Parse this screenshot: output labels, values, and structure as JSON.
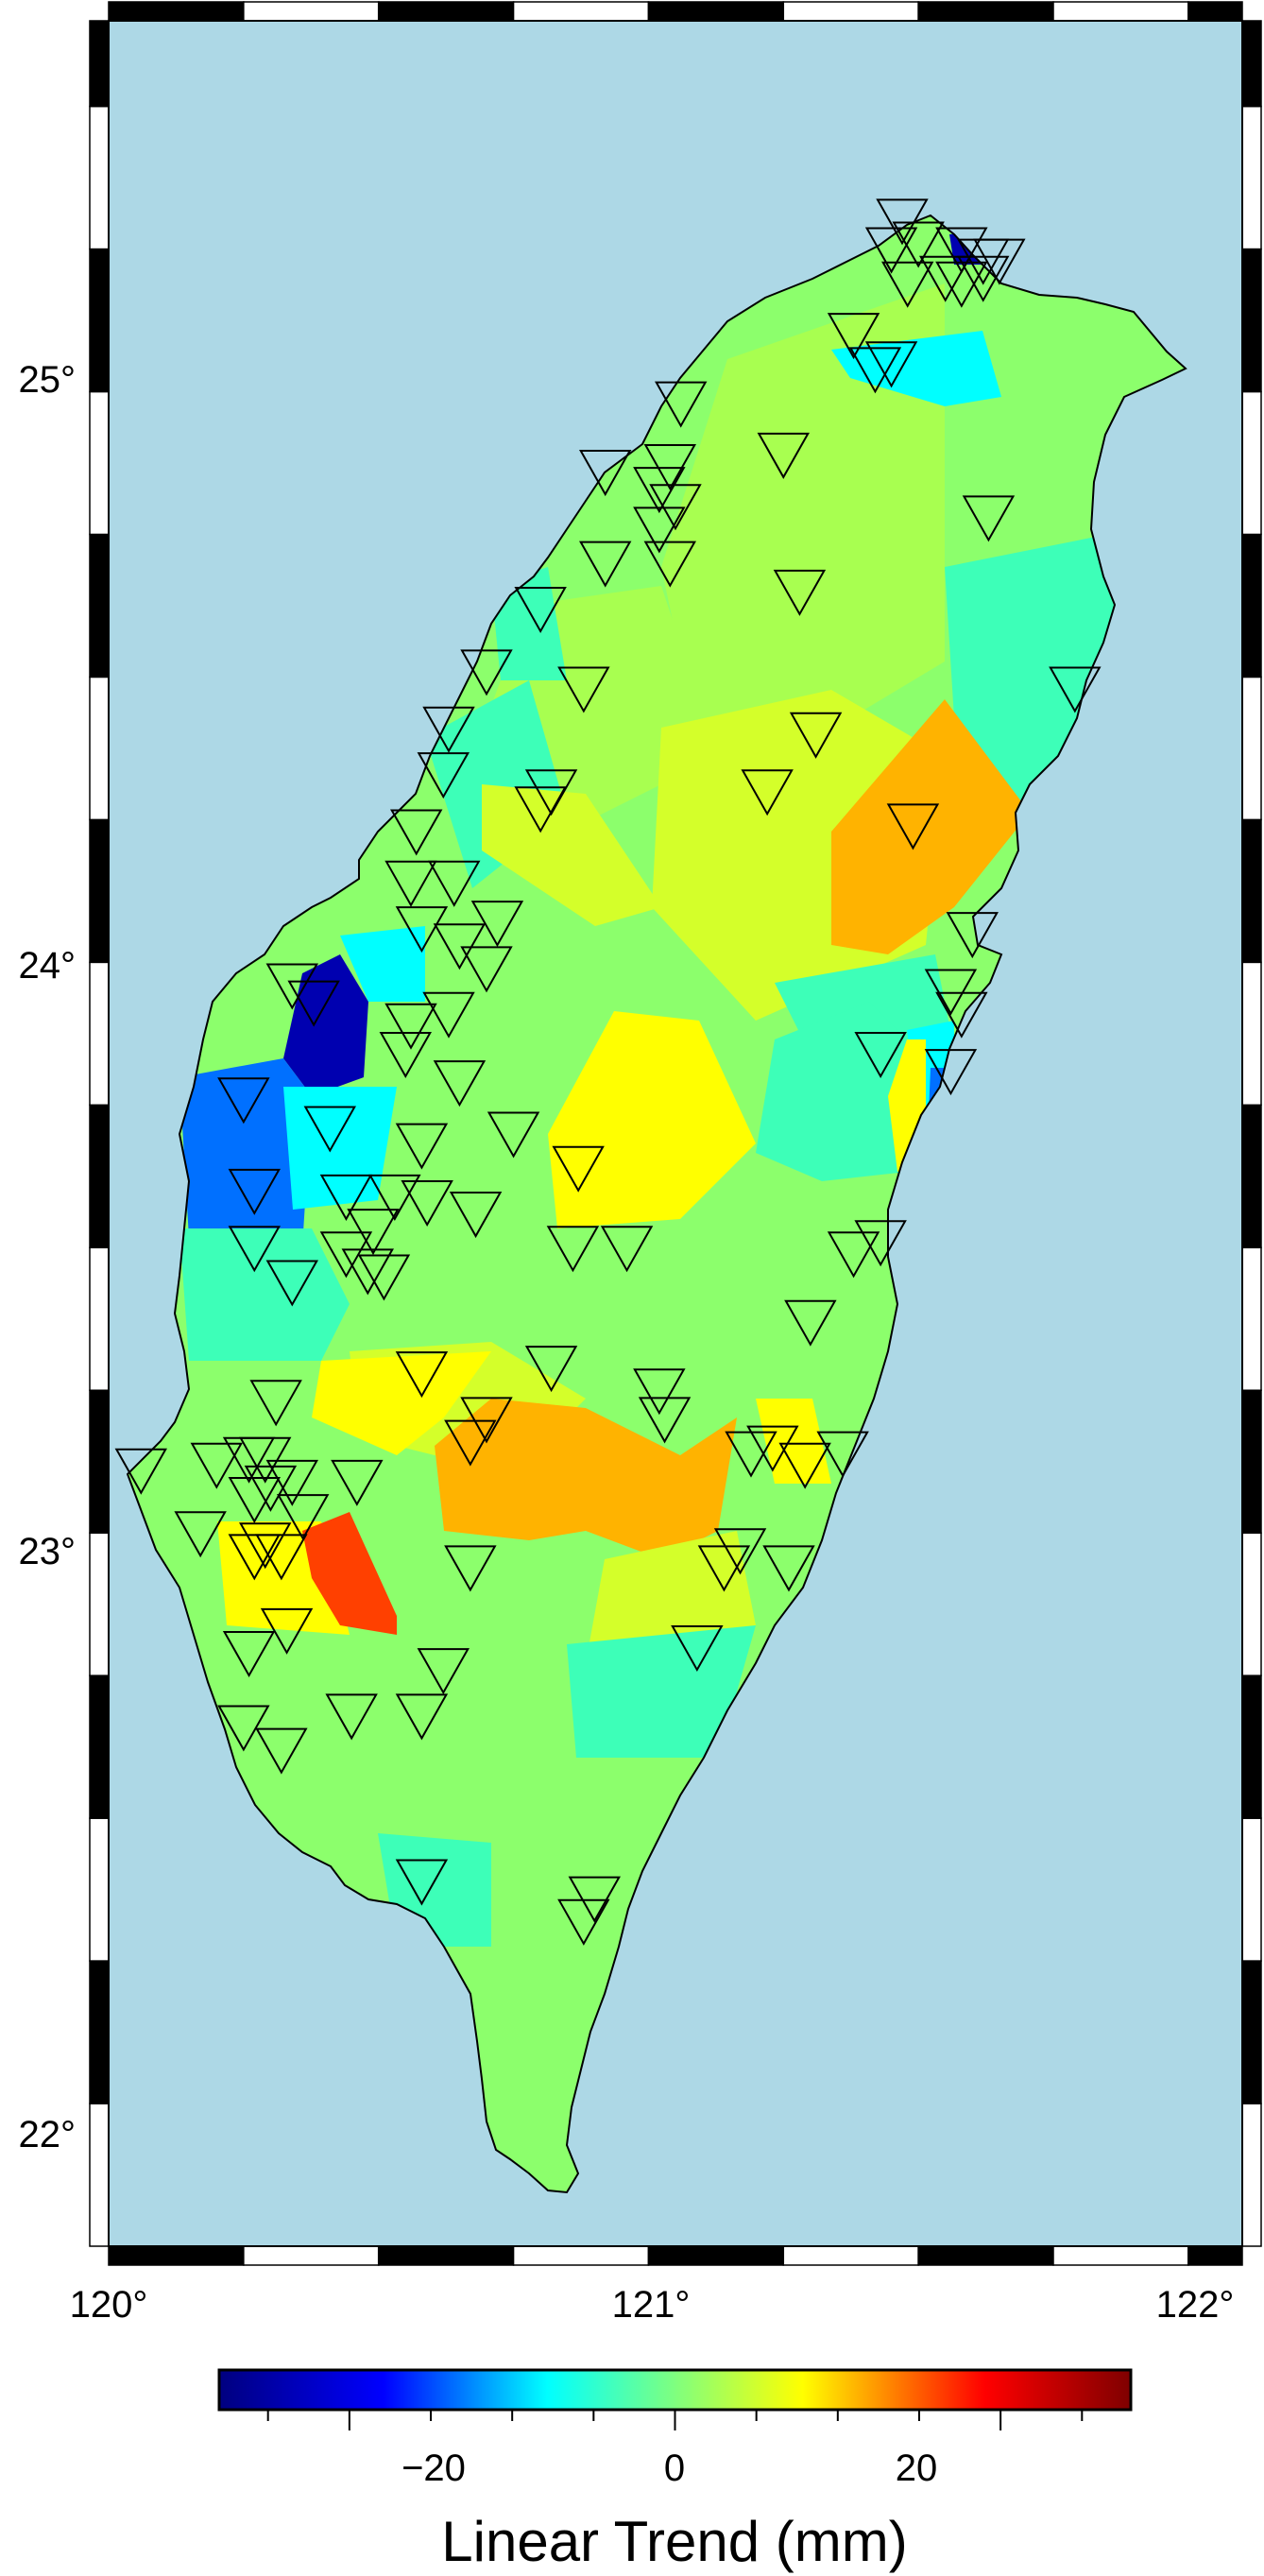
{
  "map": {
    "sea_color": "#add8e6",
    "land_colors": {
      "green": "#8cff6c",
      "lightgreen": "#a8ff50",
      "teal": "#3dffb8",
      "cyan": "#00ffff",
      "yellow": "#ffff00",
      "yelgreen": "#d4ff2a",
      "orange": "#ffb300",
      "red": "#ff4000",
      "blue": "#0070ff",
      "deepblue": "#0000b0"
    },
    "lon_labels": [
      "120°",
      "121°",
      "122°"
    ],
    "lat_labels": [
      "25°",
      "24°",
      "23°",
      "22°"
    ]
  },
  "colorbar": {
    "title": "Linear Trend (mm)",
    "tick_labels": [
      "−20",
      "0",
      "20"
    ],
    "colors": [
      "#00007f",
      "#0000ff",
      "#00ffff",
      "#7fff7f",
      "#ffff00",
      "#ff0000",
      "#7f0000"
    ]
  },
  "chart_data": {
    "type": "map",
    "x_range": [
      120,
      122.1
    ],
    "y_range": [
      21.7,
      25.6
    ],
    "colorbar_range": [
      -28,
      28
    ],
    "colorbar_ticks": [
      -20,
      0,
      20
    ],
    "stations": [
      [
        121.47,
        25.25
      ],
      [
        121.45,
        25.2
      ],
      [
        121.5,
        25.21
      ],
      [
        121.58,
        25.2
      ],
      [
        121.62,
        25.18
      ],
      [
        121.65,
        25.18
      ],
      [
        121.55,
        25.15
      ],
      [
        121.48,
        25.14
      ],
      [
        121.58,
        25.14
      ],
      [
        121.62,
        25.15
      ],
      [
        121.38,
        25.05
      ],
      [
        121.42,
        24.99
      ],
      [
        121.45,
        25.0
      ],
      [
        121.06,
        24.93
      ],
      [
        121.04,
        24.82
      ],
      [
        120.92,
        24.81
      ],
      [
        121.02,
        24.78
      ],
      [
        121.05,
        24.75
      ],
      [
        121.02,
        24.71
      ],
      [
        121.04,
        24.65
      ],
      [
        120.92,
        24.65
      ],
      [
        121.25,
        24.84
      ],
      [
        121.63,
        24.73
      ],
      [
        121.28,
        24.6
      ],
      [
        120.8,
        24.57
      ],
      [
        120.7,
        24.46
      ],
      [
        120.88,
        24.43
      ],
      [
        120.63,
        24.36
      ],
      [
        120.62,
        24.28
      ],
      [
        120.82,
        24.25
      ],
      [
        120.8,
        24.22
      ],
      [
        121.22,
        24.25
      ],
      [
        121.31,
        24.35
      ],
      [
        121.49,
        24.19
      ],
      [
        121.79,
        24.43
      ],
      [
        120.57,
        24.18
      ],
      [
        120.56,
        24.09
      ],
      [
        120.64,
        24.09
      ],
      [
        120.72,
        24.02
      ],
      [
        120.58,
        24.01
      ],
      [
        120.65,
        23.98
      ],
      [
        120.7,
        23.94
      ],
      [
        120.34,
        23.91
      ],
      [
        120.38,
        23.88
      ],
      [
        120.56,
        23.84
      ],
      [
        120.63,
        23.86
      ],
      [
        120.55,
        23.79
      ],
      [
        120.65,
        23.74
      ],
      [
        121.43,
        23.79
      ],
      [
        121.56,
        23.76
      ],
      [
        121.56,
        23.9
      ],
      [
        121.58,
        23.86
      ],
      [
        121.6,
        24.0
      ],
      [
        120.25,
        23.71
      ],
      [
        120.41,
        23.66
      ],
      [
        120.58,
        23.63
      ],
      [
        120.75,
        23.65
      ],
      [
        120.87,
        23.59
      ],
      [
        120.27,
        23.55
      ],
      [
        120.44,
        23.54
      ],
      [
        120.53,
        23.54
      ],
      [
        120.59,
        23.53
      ],
      [
        120.68,
        23.51
      ],
      [
        120.49,
        23.48
      ],
      [
        120.27,
        23.45
      ],
      [
        120.44,
        23.44
      ],
      [
        120.48,
        23.41
      ],
      [
        120.51,
        23.4
      ],
      [
        120.34,
        23.39
      ],
      [
        120.86,
        23.45
      ],
      [
        120.96,
        23.45
      ],
      [
        121.38,
        23.44
      ],
      [
        121.43,
        23.46
      ],
      [
        121.3,
        23.32
      ],
      [
        120.58,
        23.23
      ],
      [
        120.82,
        23.24
      ],
      [
        120.31,
        23.18
      ],
      [
        121.02,
        23.2
      ],
      [
        121.03,
        23.15
      ],
      [
        121.23,
        23.1
      ],
      [
        121.19,
        23.09
      ],
      [
        121.29,
        23.07
      ],
      [
        121.36,
        23.09
      ],
      [
        120.7,
        23.15
      ],
      [
        120.67,
        23.11
      ],
      [
        120.2,
        23.07
      ],
      [
        120.26,
        23.08
      ],
      [
        120.29,
        23.08
      ],
      [
        120.06,
        23.06
      ],
      [
        120.27,
        23.01
      ],
      [
        120.3,
        23.03
      ],
      [
        120.34,
        23.04
      ],
      [
        120.46,
        23.04
      ],
      [
        120.36,
        22.98
      ],
      [
        120.17,
        22.95
      ],
      [
        120.29,
        22.93
      ],
      [
        120.27,
        22.91
      ],
      [
        120.32,
        22.91
      ],
      [
        120.67,
        22.89
      ],
      [
        121.17,
        22.92
      ],
      [
        121.14,
        22.89
      ],
      [
        121.26,
        22.89
      ],
      [
        120.33,
        22.78
      ],
      [
        120.26,
        22.74
      ],
      [
        121.09,
        22.75
      ],
      [
        120.62,
        22.71
      ],
      [
        120.25,
        22.61
      ],
      [
        120.32,
        22.57
      ],
      [
        120.45,
        22.63
      ],
      [
        120.58,
        22.63
      ],
      [
        120.58,
        22.34
      ],
      [
        120.9,
        22.31
      ],
      [
        120.88,
        22.27
      ]
    ]
  }
}
